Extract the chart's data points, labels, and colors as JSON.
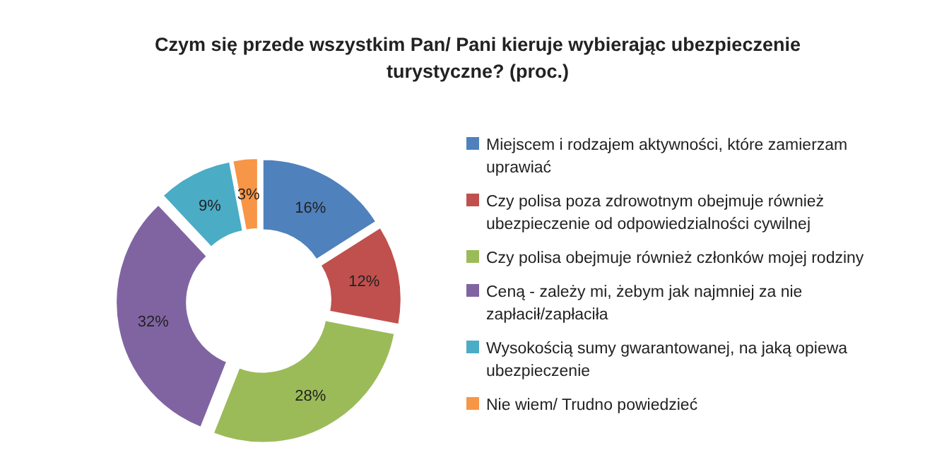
{
  "chart_data": {
    "type": "donut",
    "title": "Czym się przede wszystkim Pan/ Pani kieruje wybierając ubezpieczenie turystyczne? (proc.)",
    "categories": [
      "Miejscem i rodzajem aktywności, które zamierzam uprawiać",
      "Czy polisa poza zdrowotnym obejmuje również ubezpieczenie od odpowiedzialności cywilnej",
      "Czy polisa obejmuje również członków mojej rodziny",
      "Ceną - zależy mi, żebym jak najmniej za nie zapłacił/zapłaciła",
      "Wysokością sumy gwarantowanej, na jaką opiewa ubezpieczenie",
      "Nie wiem/ Trudno powiedzieć"
    ],
    "values": [
      16,
      12,
      28,
      32,
      9,
      3
    ],
    "value_labels": [
      "16%",
      "12%",
      "28%",
      "32%",
      "9%",
      "3%"
    ],
    "colors": [
      "#4f81bd",
      "#c0504d",
      "#9bbb59",
      "#8064a2",
      "#4bacc6",
      "#f79646"
    ],
    "legend": "right"
  }
}
